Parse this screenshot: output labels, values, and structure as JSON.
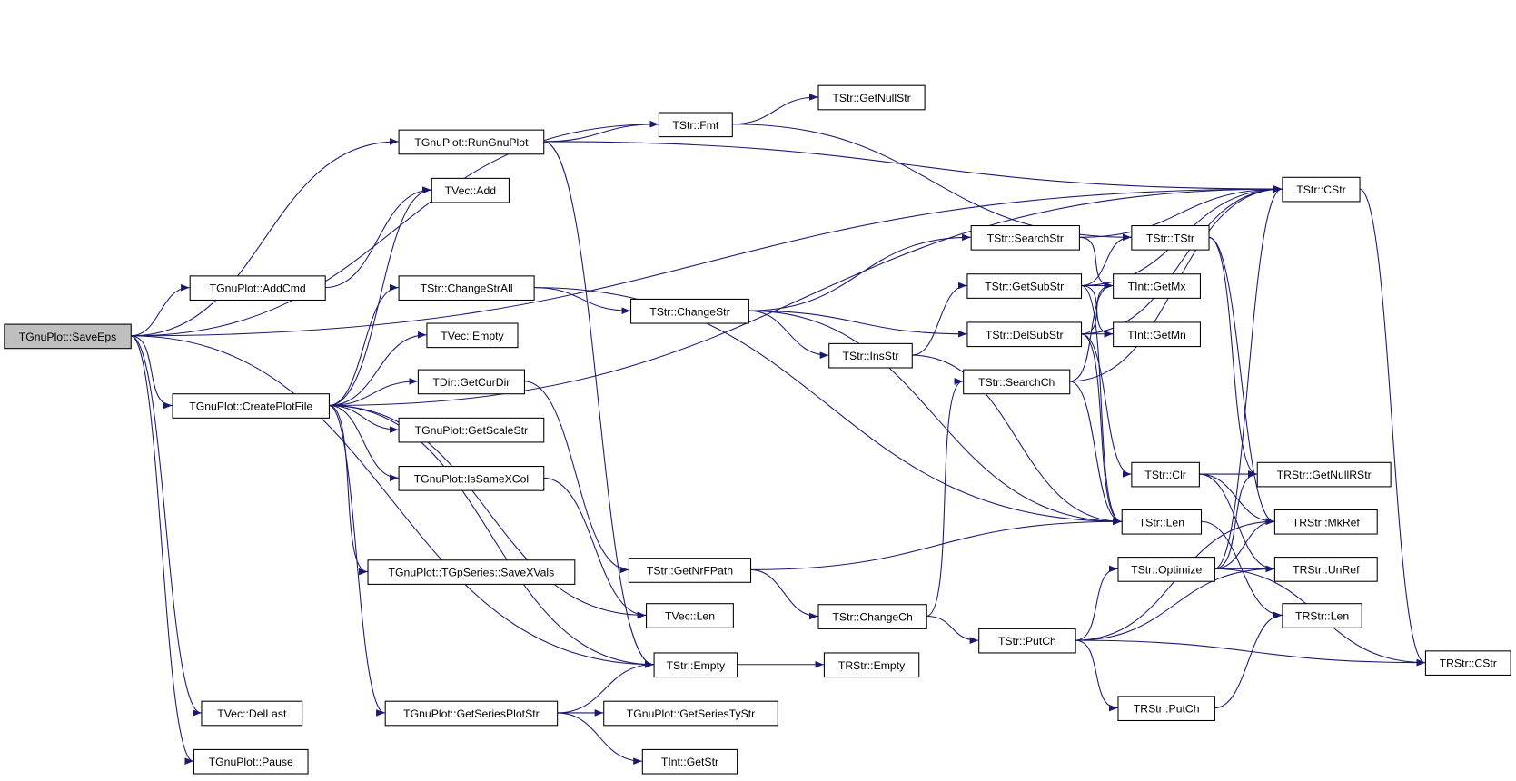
{
  "colors": {
    "edge": "#191970",
    "root_fill": "#bfbfbf",
    "node_fill": "#ffffff"
  },
  "root": "SaveEps",
  "nodes": {
    "SaveEps": "TGnuPlot::SaveEps",
    "RunGnuPlot": "TGnuPlot::RunGnuPlot",
    "VecAdd": "TVec::Add",
    "AddCmd": "TGnuPlot::AddCmd",
    "CreatePlotFile": "TGnuPlot::CreatePlotFile",
    "ChangeStrAll": "TStr::ChangeStrAll",
    "VecEmpty": "TVec::Empty",
    "GetCurDir": "TDir::GetCurDir",
    "GetScaleStr": "TGnuPlot::GetScaleStr",
    "IsSameXCol": "TGnuPlot::IsSameXCol",
    "SaveXVals": "TGnuPlot::TGpSeries::SaveXVals",
    "StrEmpty": "TStr::Empty",
    "DelLast": "TVec::DelLast",
    "GetSeriesPlotStr": "TGnuPlot::GetSeriesPlotStr",
    "Pause": "TGnuPlot::Pause",
    "Fmt": "TStr::Fmt",
    "GetNullStr": "TStr::GetNullStr",
    "ChangeStr": "TStr::ChangeStr",
    "InsStr": "TStr::InsStr",
    "GetNrFPath": "TStr::GetNrFPath",
    "VecLen": "TVec::Len",
    "RStrEmpty": "TRStr::Empty",
    "GetSeriesTyStr": "TGnuPlot::GetSeriesTyStr",
    "IntGetStr": "TInt::GetStr",
    "SearchStr": "TStr::SearchStr",
    "GetSubStr": "TStr::GetSubStr",
    "DelSubStr": "TStr::DelSubStr",
    "SearchCh": "TStr::SearchCh",
    "ChangeCh": "TStr::ChangeCh",
    "PutCh": "TStr::PutCh",
    "CStr": "TStr::CStr",
    "TStrCtor": "TStr::TStr",
    "GetMx": "TInt::GetMx",
    "GetMn": "TInt::GetMn",
    "Clr": "TStr::Clr",
    "StrLen": "TStr::Len",
    "Optimize": "TStr::Optimize",
    "GetNullRStr": "TRStr::GetNullRStr",
    "MkRef": "TRStr::MkRef",
    "UnRef": "TRStr::UnRef",
    "RStrLen": "TRStr::Len",
    "RStrPutCh": "TRStr::PutCh",
    "RStrCStr": "TRStr::CStr"
  },
  "edges": [
    [
      "SaveEps",
      "CStr"
    ],
    [
      "SaveEps",
      "Fmt"
    ],
    [
      "SaveEps",
      "RunGnuPlot"
    ],
    [
      "SaveEps",
      "AddCmd"
    ],
    [
      "SaveEps",
      "CreatePlotFile"
    ],
    [
      "SaveEps",
      "StrEmpty"
    ],
    [
      "SaveEps",
      "DelLast"
    ],
    [
      "SaveEps",
      "Pause"
    ],
    [
      "RunGnuPlot",
      "Fmt"
    ],
    [
      "RunGnuPlot",
      "CStr"
    ],
    [
      "RunGnuPlot",
      "StrEmpty"
    ],
    [
      "AddCmd",
      "VecAdd"
    ],
    [
      "CreatePlotFile",
      "VecAdd"
    ],
    [
      "CreatePlotFile",
      "CStr"
    ],
    [
      "CreatePlotFile",
      "ChangeStrAll"
    ],
    [
      "CreatePlotFile",
      "VecEmpty"
    ],
    [
      "CreatePlotFile",
      "GetCurDir"
    ],
    [
      "CreatePlotFile",
      "GetScaleStr"
    ],
    [
      "CreatePlotFile",
      "IsSameXCol"
    ],
    [
      "CreatePlotFile",
      "SaveXVals"
    ],
    [
      "CreatePlotFile",
      "StrEmpty"
    ],
    [
      "CreatePlotFile",
      "VecLen"
    ],
    [
      "CreatePlotFile",
      "GetSeriesPlotStr"
    ],
    [
      "Fmt",
      "GetNullStr"
    ],
    [
      "Fmt",
      "TStrCtor"
    ],
    [
      "ChangeStrAll",
      "ChangeStr"
    ],
    [
      "ChangeStrAll",
      "StrLen"
    ],
    [
      "ChangeStr",
      "SearchStr"
    ],
    [
      "ChangeStr",
      "InsStr"
    ],
    [
      "ChangeStr",
      "DelSubStr"
    ],
    [
      "ChangeStr",
      "StrLen"
    ],
    [
      "GetCurDir",
      "GetNrFPath"
    ],
    [
      "IsSameXCol",
      "VecLen"
    ],
    [
      "GetNrFPath",
      "StrLen"
    ],
    [
      "GetNrFPath",
      "ChangeCh"
    ],
    [
      "StrEmpty",
      "RStrEmpty"
    ],
    [
      "GetSeriesPlotStr",
      "StrEmpty"
    ],
    [
      "GetSeriesPlotStr",
      "GetSeriesTyStr"
    ],
    [
      "GetSeriesPlotStr",
      "IntGetStr"
    ],
    [
      "InsStr",
      "GetSubStr"
    ],
    [
      "InsStr",
      "StrLen"
    ],
    [
      "SearchStr",
      "CStr"
    ],
    [
      "SearchStr",
      "GetMx"
    ],
    [
      "GetSubStr",
      "TStrCtor"
    ],
    [
      "GetSubStr",
      "CStr"
    ],
    [
      "GetSubStr",
      "GetMx"
    ],
    [
      "GetSubStr",
      "GetMn"
    ],
    [
      "GetSubStr",
      "StrLen"
    ],
    [
      "DelSubStr",
      "GetMx"
    ],
    [
      "DelSubStr",
      "GetMn"
    ],
    [
      "DelSubStr",
      "CStr"
    ],
    [
      "DelSubStr",
      "Clr"
    ],
    [
      "DelSubStr",
      "StrLen"
    ],
    [
      "SearchCh",
      "GetMx"
    ],
    [
      "SearchCh",
      "CStr"
    ],
    [
      "SearchCh",
      "StrLen"
    ],
    [
      "ChangeCh",
      "SearchCh"
    ],
    [
      "ChangeCh",
      "PutCh"
    ],
    [
      "PutCh",
      "Optimize"
    ],
    [
      "PutCh",
      "MkRef"
    ],
    [
      "PutCh",
      "UnRef"
    ],
    [
      "PutCh",
      "RStrPutCh"
    ],
    [
      "PutCh",
      "RStrCStr"
    ],
    [
      "TStrCtor",
      "GetNullRStr"
    ],
    [
      "TStrCtor",
      "MkRef"
    ],
    [
      "Clr",
      "GetNullRStr"
    ],
    [
      "Clr",
      "MkRef"
    ],
    [
      "Clr",
      "UnRef"
    ],
    [
      "StrLen",
      "RStrLen"
    ],
    [
      "Optimize",
      "CStr"
    ],
    [
      "Optimize",
      "GetNullRStr"
    ],
    [
      "Optimize",
      "MkRef"
    ],
    [
      "Optimize",
      "UnRef"
    ],
    [
      "Optimize",
      "RStrCStr"
    ],
    [
      "RStrPutCh",
      "RStrLen"
    ],
    [
      "CStr",
      "RStrCStr"
    ]
  ]
}
